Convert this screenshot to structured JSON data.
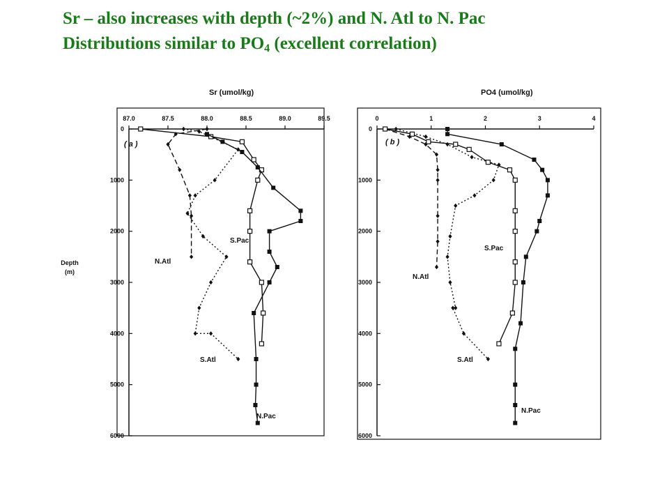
{
  "slide": {
    "line1": "Sr – also increases with depth (~2%) and N. Atl to N. Pac",
    "line2_before": "Distributions similar to PO",
    "line2_sub": "4",
    "line2_after": " (excellent correlation)",
    "title_color": "#1a7a1a"
  },
  "chart_data": [
    {
      "type": "line",
      "title": "Sr (umol/kg)",
      "panel_label": "( a )",
      "ylabel": "Depth (m)",
      "xlim": [
        87.0,
        89.5
      ],
      "ylim": [
        0,
        6000
      ],
      "x_ticks": [
        "87.0",
        "87.5",
        "88.0",
        "88.5",
        "89.0",
        "89.5"
      ],
      "y_ticks": [
        "0",
        "1000",
        "2000",
        "3000",
        "4000",
        "5000",
        "6000"
      ],
      "series": [
        {
          "name": "N.Atl",
          "style": "dashed",
          "marker": "diamond",
          "x": [
            88.0,
            87.6,
            87.5,
            87.65,
            87.78,
            87.8,
            87.8
          ],
          "y": [
            0,
            100,
            300,
            800,
            1300,
            1700,
            2500
          ]
        },
        {
          "name": "S.Atl",
          "style": "dashdot",
          "marker": "diamond",
          "x": [
            87.7,
            87.9,
            88.4,
            88.1,
            87.85,
            87.75,
            87.95,
            88.25,
            88.05,
            87.9,
            87.85,
            88.05,
            88.4
          ],
          "y": [
            0,
            50,
            400,
            1000,
            1300,
            1650,
            2100,
            2500,
            3000,
            3500,
            4000,
            4000,
            4500
          ]
        },
        {
          "name": "S.Pac",
          "style": "solid",
          "marker": "open-square",
          "x": [
            87.15,
            88.05,
            88.45,
            88.6,
            88.7,
            88.65,
            88.55,
            88.55,
            88.55,
            88.7,
            88.72,
            88.7
          ],
          "y": [
            0,
            150,
            250,
            600,
            800,
            1000,
            1600,
            2000,
            2600,
            3000,
            3600,
            4200
          ]
        },
        {
          "name": "N.Pac",
          "style": "solid",
          "marker": "filled-square",
          "x": [
            88.0,
            88.2,
            88.45,
            88.65,
            88.85,
            89.2,
            89.2,
            88.8,
            88.8,
            88.9,
            88.8,
            88.6,
            88.63,
            88.63,
            88.62,
            88.65
          ],
          "y": [
            100,
            250,
            450,
            750,
            1150,
            1600,
            1800,
            2000,
            2400,
            2700,
            3000,
            3600,
            4500,
            5000,
            5400,
            5750
          ]
        }
      ],
      "annotations": [
        "N.Atl",
        "S.Atl",
        "S.Pac",
        "N.Pac"
      ]
    },
    {
      "type": "line",
      "title": "PO4 (umol/kg)",
      "panel_label": "( b )",
      "ylabel": "Depth (m)",
      "xlim": [
        0,
        4
      ],
      "ylim": [
        0,
        6000
      ],
      "x_ticks": [
        "0",
        "1",
        "2",
        "3",
        "4"
      ],
      "y_ticks": [
        "0",
        "1000",
        "2000",
        "3000",
        "4000",
        "5000",
        "6000"
      ],
      "series": [
        {
          "name": "N.Atl",
          "style": "dashed",
          "marker": "diamond",
          "x": [
            0.15,
            0.6,
            0.9,
            1.1,
            1.12,
            1.12,
            1.12,
            1.12,
            1.1
          ],
          "y": [
            0,
            150,
            300,
            500,
            800,
            1000,
            1700,
            2200,
            2700
          ]
        },
        {
          "name": "S.Atl",
          "style": "dashdot",
          "marker": "diamond",
          "x": [
            0.35,
            0.9,
            1.3,
            1.75,
            2.25,
            2.15,
            1.8,
            1.45,
            1.35,
            1.3,
            1.35,
            1.45,
            1.4,
            1.6,
            2.05
          ],
          "y": [
            0,
            150,
            300,
            550,
            700,
            1000,
            1300,
            1500,
            2100,
            2500,
            3000,
            3500,
            3500,
            4000,
            4500
          ]
        },
        {
          "name": "S.Pac",
          "style": "solid",
          "marker": "open-square",
          "x": [
            0.15,
            0.65,
            0.95,
            1.45,
            1.7,
            2.05,
            2.45,
            2.55,
            2.55,
            2.55,
            2.55,
            2.55,
            2.5,
            2.25
          ],
          "y": [
            0,
            100,
            250,
            300,
            400,
            650,
            800,
            1000,
            1600,
            2000,
            2600,
            3000,
            3600,
            4200
          ]
        },
        {
          "name": "N.Pac",
          "style": "solid",
          "marker": "filled-square",
          "x": [
            1.3,
            1.3,
            2.3,
            2.9,
            3.05,
            3.15,
            3.15,
            3.0,
            2.95,
            2.75,
            2.7,
            2.65,
            2.55,
            2.55,
            2.55,
            2.55
          ],
          "y": [
            0,
            100,
            300,
            600,
            800,
            1000,
            1300,
            1800,
            2000,
            2500,
            3000,
            3800,
            4300,
            5000,
            5400,
            5750
          ]
        }
      ],
      "annotations": [
        "N.Atl",
        "S.Atl",
        "S.Pac",
        "N.Pac"
      ]
    }
  ]
}
